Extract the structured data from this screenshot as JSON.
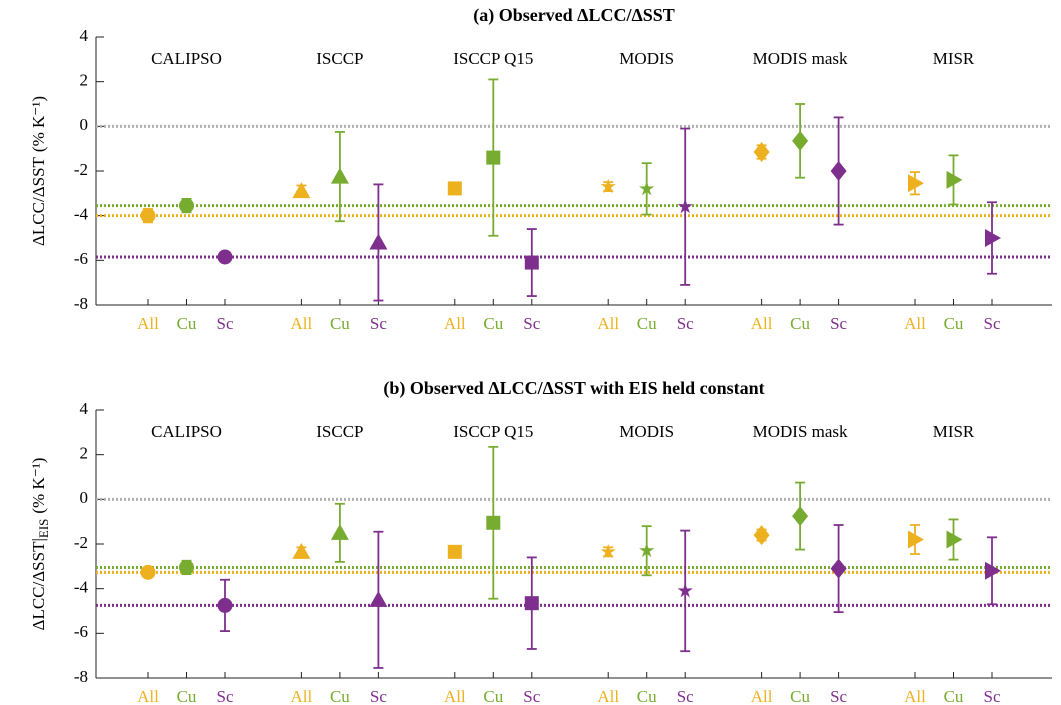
{
  "chart_data": [
    {
      "type": "errorbar",
      "title": "(a) Observed ΔLCC/ΔSST",
      "ylabel": "ΔLCC/ΔSST",
      "ylabel_unit": "(% K⁻¹)",
      "categories": [
        "CALIPSO",
        "ISCCP",
        "ISCCP Q15",
        "MODIS",
        "MODIS mask",
        "MISR"
      ],
      "markers": [
        "circle",
        "triangle",
        "square",
        "star",
        "diamond",
        "triangle-right"
      ],
      "ylim": [
        -8,
        4
      ],
      "yticks": [
        -8,
        -6,
        -4,
        -2,
        0,
        2,
        4
      ],
      "series": [
        {
          "name": "All",
          "color": "#EDB120",
          "values": [
            -4.0,
            -2.9,
            -2.78,
            -2.7,
            -1.15,
            -2.55
          ],
          "errors": [
            0.3,
            0.25,
            0.15,
            0.2,
            0.3,
            0.5
          ]
        },
        {
          "name": "Cu",
          "color": "#77AC30",
          "values": [
            -3.55,
            -2.25,
            -1.4,
            -2.8,
            -0.65,
            -2.4
          ],
          "errors": [
            0.3,
            2.0,
            3.5,
            1.15,
            1.65,
            1.1
          ]
        },
        {
          "name": "Sc",
          "color": "#7E2F8E",
          "values": [
            -5.85,
            -5.2,
            -6.1,
            -3.6,
            -2.0,
            -5.0
          ],
          "errors": [
            0.1,
            2.6,
            1.5,
            3.5,
            2.4,
            1.6
          ]
        }
      ],
      "hlines": [
        {
          "value": 0,
          "color": "#b0b0b0"
        },
        {
          "value": -4.0,
          "color": "#EDB120"
        },
        {
          "value": -3.55,
          "color": "#77AC30"
        },
        {
          "value": -5.85,
          "color": "#7E2F8E"
        }
      ]
    },
    {
      "type": "errorbar",
      "title": "(b) Observed ΔLCC/ΔSST with EIS held constant",
      "ylabel": "ΔLCC/ΔSST|",
      "ylabel_sub": "EIS",
      "ylabel_unit": "(% K⁻¹)",
      "categories": [
        "CALIPSO",
        "ISCCP",
        "ISCCP Q15",
        "MODIS",
        "MODIS mask",
        "MISR"
      ],
      "markers": [
        "circle",
        "triangle",
        "square",
        "star",
        "diamond",
        "triangle-right"
      ],
      "ylim": [
        -8,
        4
      ],
      "yticks": [
        -8,
        -6,
        -4,
        -2,
        0,
        2,
        4
      ],
      "series": [
        {
          "name": "All",
          "color": "#EDB120",
          "values": [
            -3.27,
            -2.35,
            -2.35,
            -2.35,
            -1.6,
            -1.8
          ],
          "errors": [
            0.2,
            0.2,
            0.1,
            0.2,
            0.25,
            0.65
          ]
        },
        {
          "name": "Cu",
          "color": "#77AC30",
          "values": [
            -3.05,
            -1.5,
            -1.05,
            -2.3,
            -0.75,
            -1.8
          ],
          "errors": [
            0.3,
            1.3,
            3.4,
            1.1,
            1.5,
            0.9
          ]
        },
        {
          "name": "Sc",
          "color": "#7E2F8E",
          "values": [
            -4.75,
            -4.5,
            -4.65,
            -4.1,
            -3.1,
            -3.2
          ],
          "errors": [
            1.15,
            3.05,
            2.05,
            2.7,
            1.95,
            1.5
          ]
        }
      ],
      "hlines": [
        {
          "value": 0,
          "color": "#b0b0b0"
        },
        {
          "value": -3.27,
          "color": "#EDB120"
        },
        {
          "value": -3.05,
          "color": "#77AC30"
        },
        {
          "value": -4.75,
          "color": "#7E2F8E"
        }
      ]
    }
  ]
}
